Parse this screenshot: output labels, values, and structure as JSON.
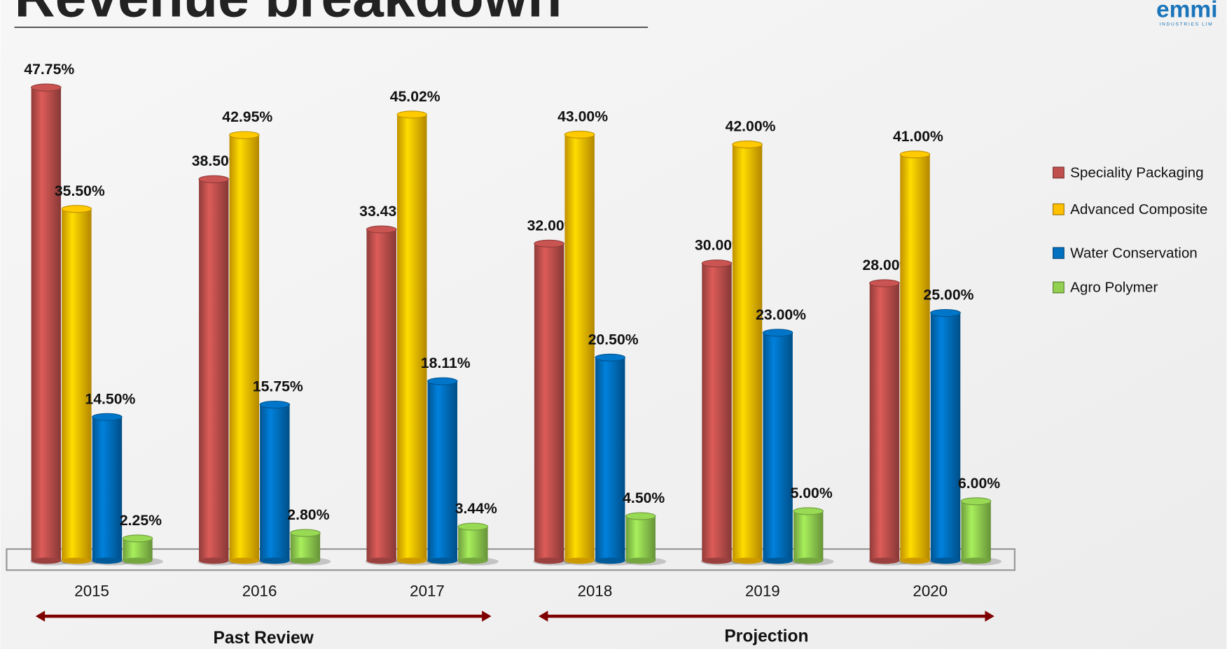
{
  "chart_data": {
    "type": "bar",
    "title": "Revenue breakdown",
    "logo": "emmi",
    "logo_subtitle": "INDUSTRIES LIM",
    "categories": [
      "2015",
      "2016",
      "2017",
      "2018",
      "2019",
      "2020"
    ],
    "series": [
      {
        "name": "Speciality Packaging",
        "color": "#c0504d",
        "values": [
          47.75,
          38.5,
          33.43,
          32,
          30,
          28
        ],
        "value_labels": [
          "47.75%",
          "38.50%",
          "33.43%",
          "32.00%",
          "30.00%",
          "28.00%"
        ]
      },
      {
        "name": "Advanced Composite",
        "color": "#ffc000",
        "values": [
          35.5,
          42.95,
          45.02,
          43,
          42,
          41
        ],
        "value_labels": [
          "35.50%",
          "42.95%",
          "45.02%",
          "43.00%",
          "42.00%",
          "41.00%"
        ]
      },
      {
        "name": "Water Conservation",
        "color": "#0070c0",
        "values": [
          14.5,
          15.75,
          18.11,
          20.5,
          23,
          25
        ],
        "value_labels": [
          "14.50%",
          "15.75%",
          "18.11%",
          "20.50%",
          "23.00%",
          "25.00%"
        ]
      },
      {
        "name": "Agro Polymer",
        "color": "#92d050",
        "values": [
          2.25,
          2.8,
          3.44,
          4.5,
          5,
          6
        ],
        "value_labels": [
          "2.25%",
          "2.80%",
          "3.44%",
          "4.50%",
          "5.00%",
          "6.00%"
        ]
      }
    ],
    "ylim": [
      0,
      50
    ],
    "legend": "right",
    "annotations": [
      "Past Review",
      "Projection"
    ]
  }
}
